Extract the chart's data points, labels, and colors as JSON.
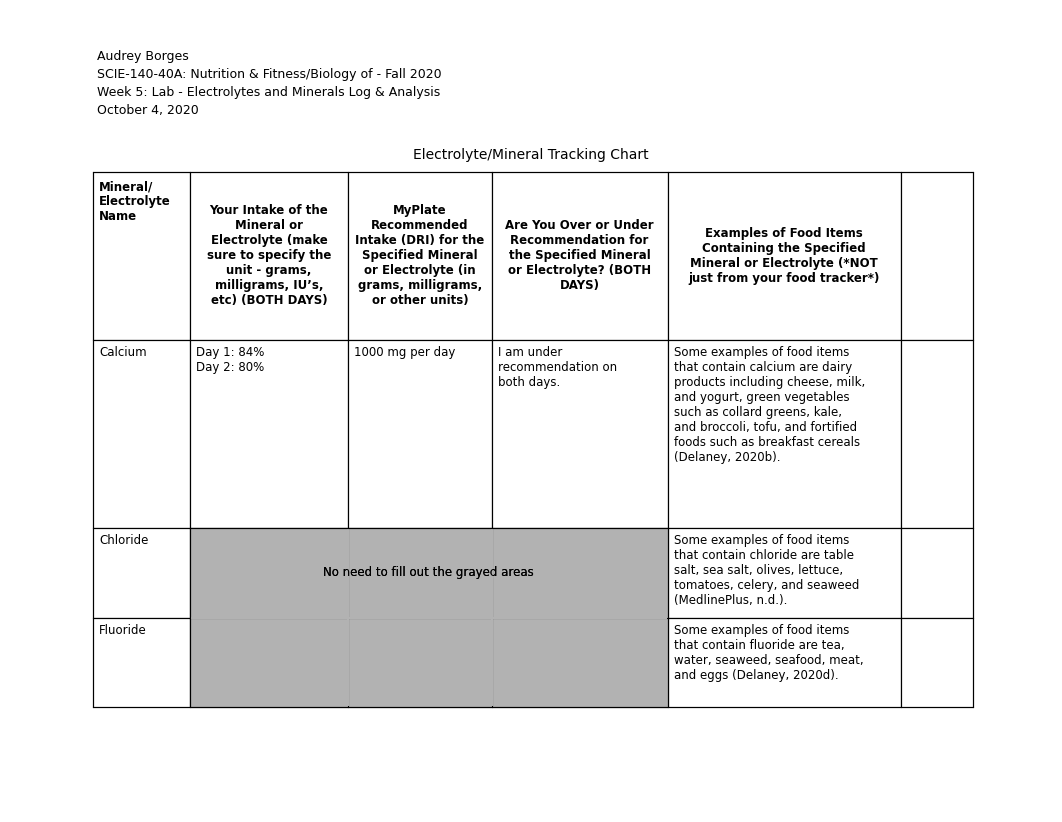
{
  "header_lines": [
    "Audrey Borges",
    "SCIE-140-40A: Nutrition & Fitness/Biology of - Fall 2020",
    "Week 5: Lab - Electrolytes and Minerals Log & Analysis",
    "October 4, 2020"
  ],
  "title": "Electrolyte/Mineral Tracking Chart",
  "col_headers": [
    "Mineral/\nElectrolyte\nName",
    "Your Intake of the\nMineral or\nElectrolyte (make\nsure to specify the\nunit - grams,\nmilligrams, IU’s,\netc) (BOTH DAYS)",
    "MyPlate\nRecommended\nIntake (DRI) for the\nSpecified Mineral\nor Electrolyte (in\ngrams, milligrams,\nor other units)",
    "Are You Over or Under\nRecommendation for\nthe Specified Mineral\nor Electrolyte? (BOTH\nDAYS)",
    "Examples of Food Items\nContaining the Specified\nMineral or Electrolyte (*NOT\njust from your food tracker*)"
  ],
  "rows": [
    {
      "name": "Calcium",
      "intake": "Day 1: 84%\nDay 2: 80%",
      "dri": "1000 mg per day",
      "over_under": "I am under\nrecommendation on\nboth days.",
      "examples": "Some examples of food items\nthat contain calcium are dairy\nproducts including cheese, milk,\nand yogurt, green vegetables\nsuch as collard greens, kale,\nand broccoli, tofu, and fortified\nfoods such as breakfast cereals\n(Delaney, 2020b).",
      "grayed": false
    },
    {
      "name": "Chloride",
      "intake": "",
      "dri": "",
      "over_under": "",
      "examples": "Some examples of food items\nthat contain chloride are table\nsalt, sea salt, olives, lettuce,\ntomatoes, celery, and seaweed\n(MedlinePlus, n.d.).",
      "grayed": true,
      "gray_note": "No need to fill out the grayed areas"
    },
    {
      "name": "Fluoride",
      "intake": "",
      "dri": "",
      "over_under": "",
      "examples": "Some examples of food items\nthat contain fluoride are tea,\nwater, seaweed, seafood, meat,\nand eggs (Delaney, 2020d).",
      "grayed": true,
      "gray_note": ""
    }
  ],
  "gray_color": "#b2b2b2",
  "border_color": "#000000",
  "font_size_header": 8.5,
  "font_size_body": 8.5,
  "font_size_title": 10,
  "font_size_meta": 9
}
